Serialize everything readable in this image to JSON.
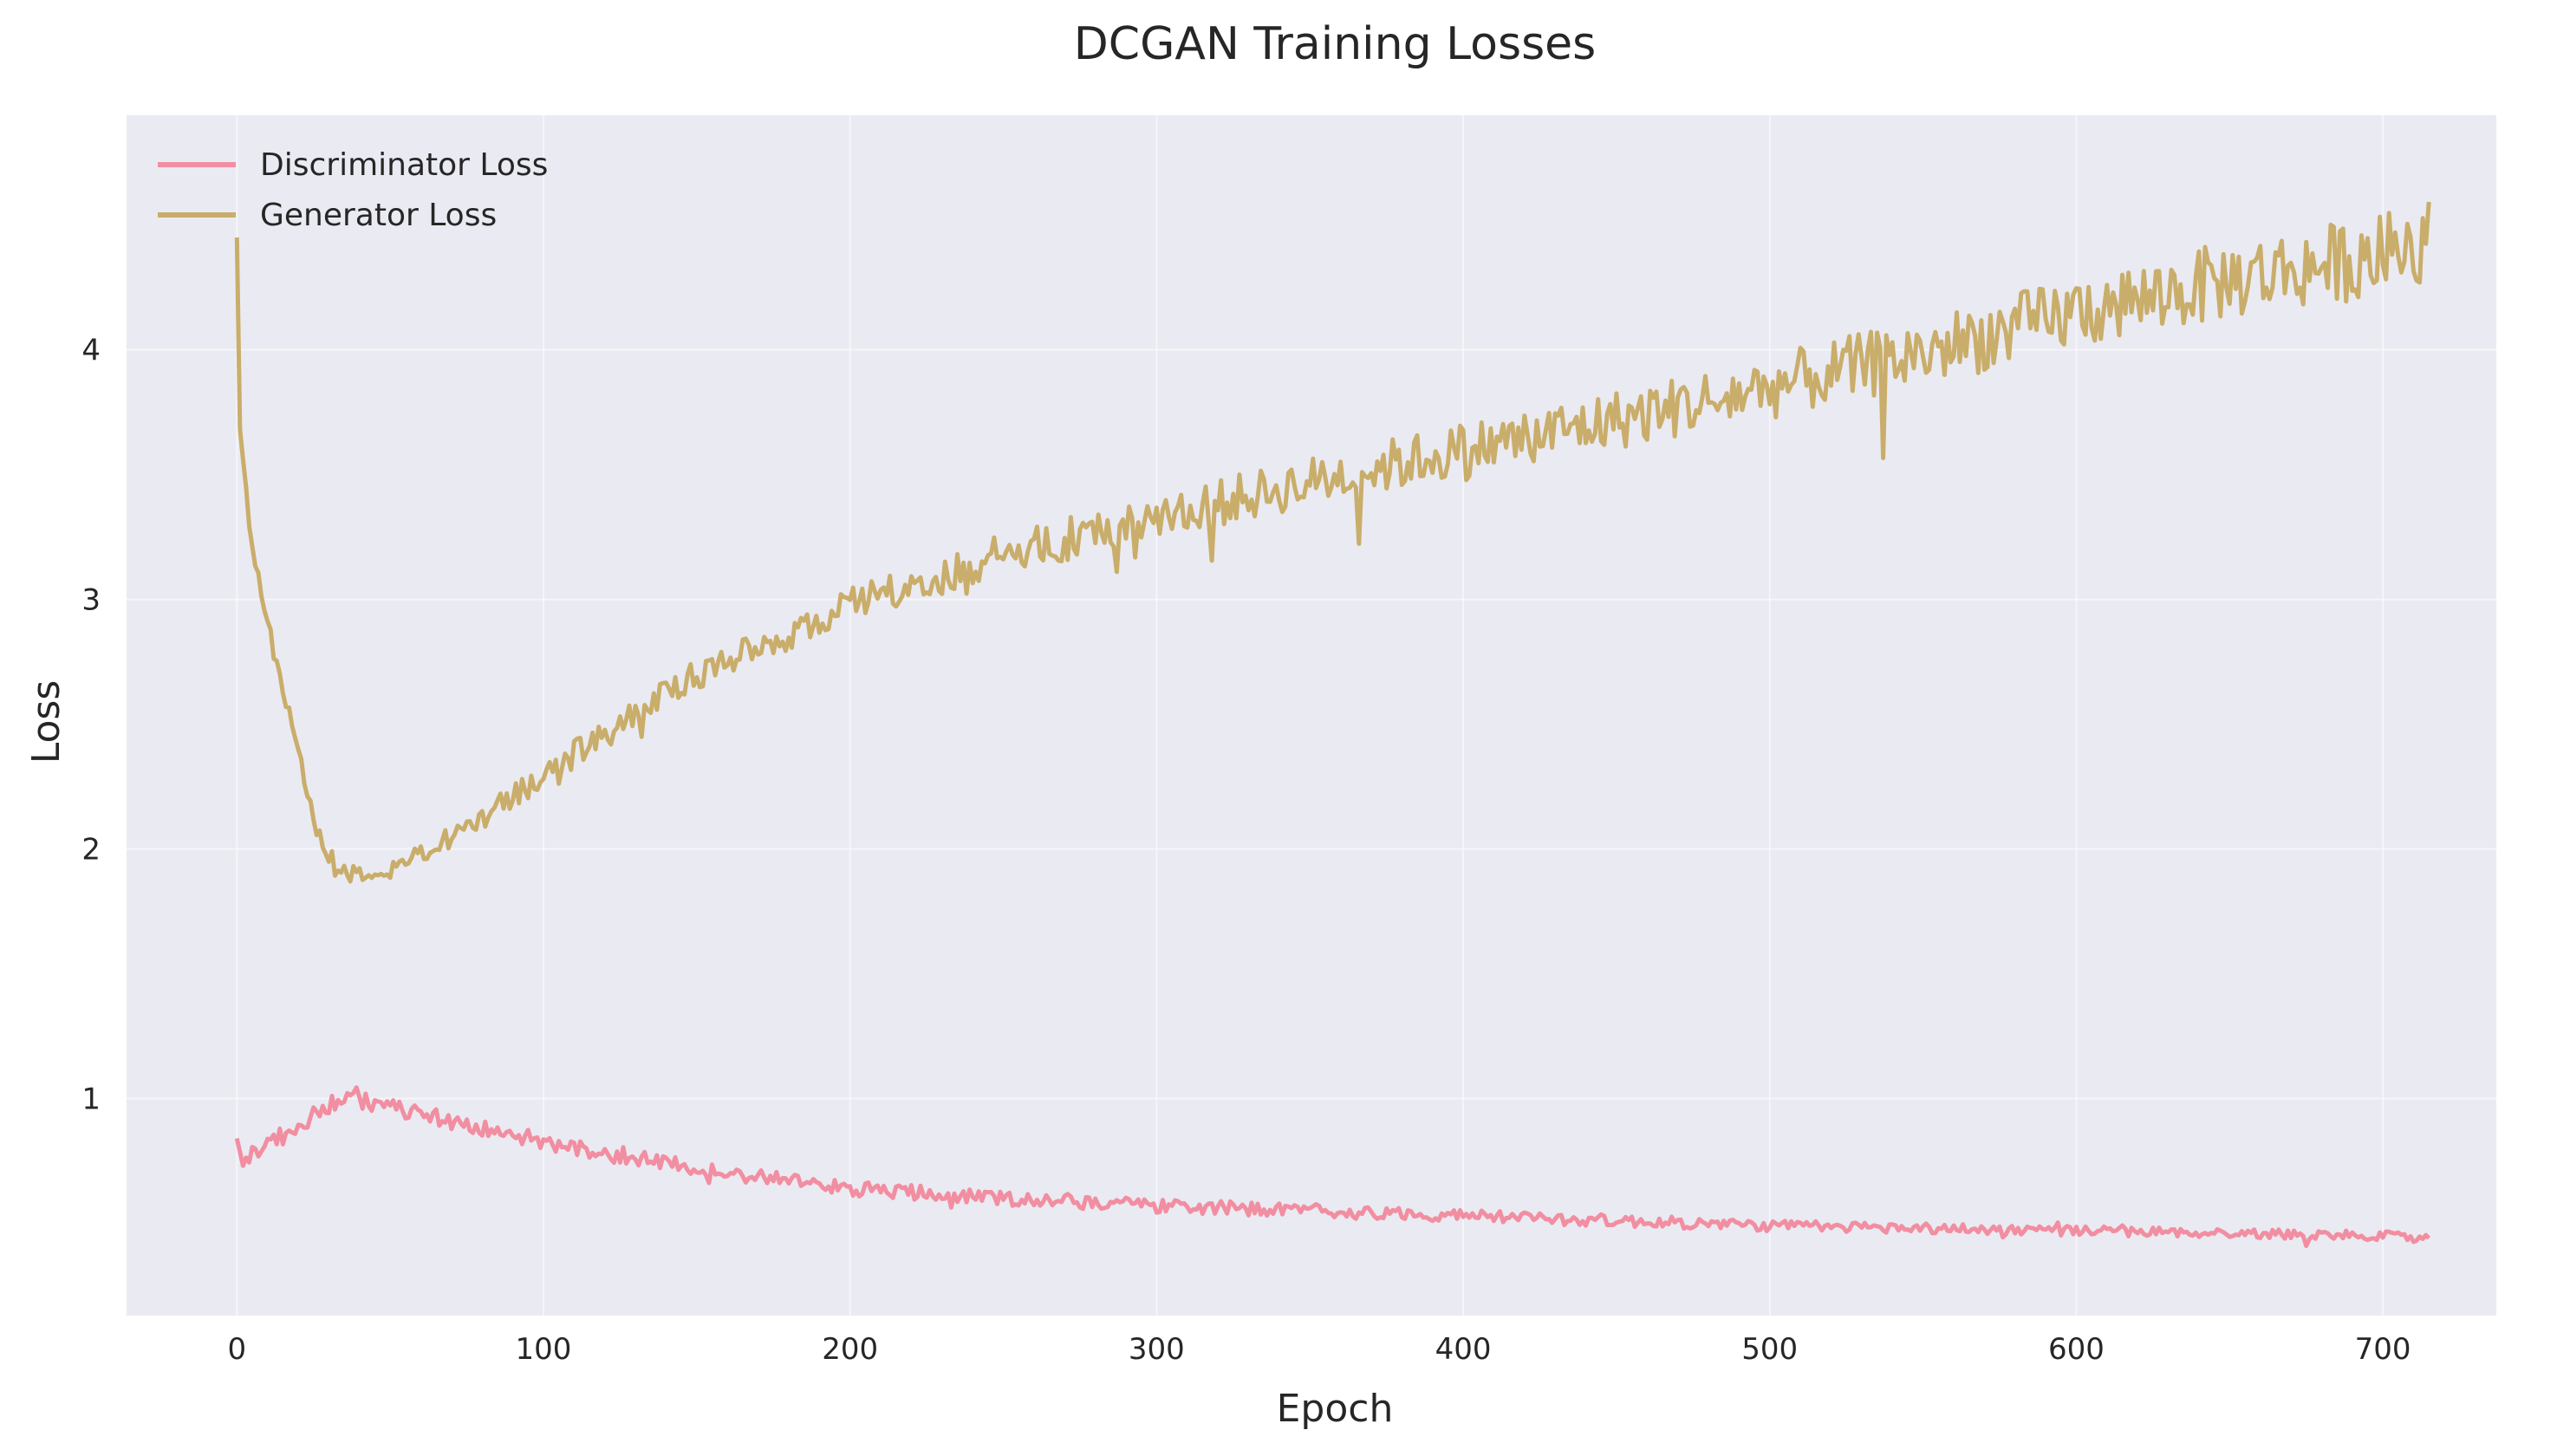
{
  "chart_data": {
    "type": "line",
    "title": "DCGAN Training Losses",
    "xlabel": "Epoch",
    "ylabel": "Loss",
    "xlim": [
      -36,
      737
    ],
    "ylim": [
      0.13,
      4.94
    ],
    "xticks": [
      0,
      100,
      200,
      300,
      400,
      500,
      600,
      700
    ],
    "yticks": [
      1,
      2,
      3,
      4
    ],
    "grid": true,
    "legend_position": "top-left",
    "background": "#eaeaf2",
    "series": [
      {
        "name": "Discriminator Loss",
        "color": "#f28ea1",
        "noise_amplitude": 0.025,
        "anchors": [
          [
            0,
            0.84
          ],
          [
            2,
            0.73
          ],
          [
            5,
            0.78
          ],
          [
            12,
            0.84
          ],
          [
            20,
            0.86
          ],
          [
            25,
            0.95
          ],
          [
            35,
            1.0
          ],
          [
            45,
            0.98
          ],
          [
            60,
            0.94
          ],
          [
            80,
            0.88
          ],
          [
            100,
            0.82
          ],
          [
            150,
            0.72
          ],
          [
            200,
            0.64
          ],
          [
            250,
            0.6
          ],
          [
            300,
            0.57
          ],
          [
            350,
            0.55
          ],
          [
            400,
            0.53
          ],
          [
            450,
            0.51
          ],
          [
            500,
            0.49
          ],
          [
            550,
            0.48
          ],
          [
            600,
            0.47
          ],
          [
            650,
            0.46
          ],
          [
            700,
            0.45
          ],
          [
            715,
            0.44
          ]
        ]
      },
      {
        "name": "Generator Loss",
        "color": "#c9ad6a",
        "noise_amplitude": 0.06,
        "anchors": [
          [
            0,
            4.45
          ],
          [
            1,
            3.68
          ],
          [
            5,
            3.2
          ],
          [
            10,
            2.9
          ],
          [
            15,
            2.65
          ],
          [
            20,
            2.4
          ],
          [
            25,
            2.1
          ],
          [
            30,
            1.98
          ],
          [
            35,
            1.9
          ],
          [
            45,
            1.87
          ],
          [
            55,
            1.93
          ],
          [
            65,
            2.02
          ],
          [
            80,
            2.12
          ],
          [
            100,
            2.3
          ],
          [
            150,
            2.7
          ],
          [
            200,
            2.97
          ],
          [
            250,
            3.18
          ],
          [
            300,
            3.33
          ],
          [
            350,
            3.47
          ],
          [
            400,
            3.6
          ],
          [
            450,
            3.72
          ],
          [
            500,
            3.85
          ],
          [
            550,
            3.99
          ],
          [
            600,
            4.15
          ],
          [
            650,
            4.28
          ],
          [
            700,
            4.38
          ],
          [
            715,
            4.45
          ]
        ]
      }
    ]
  }
}
